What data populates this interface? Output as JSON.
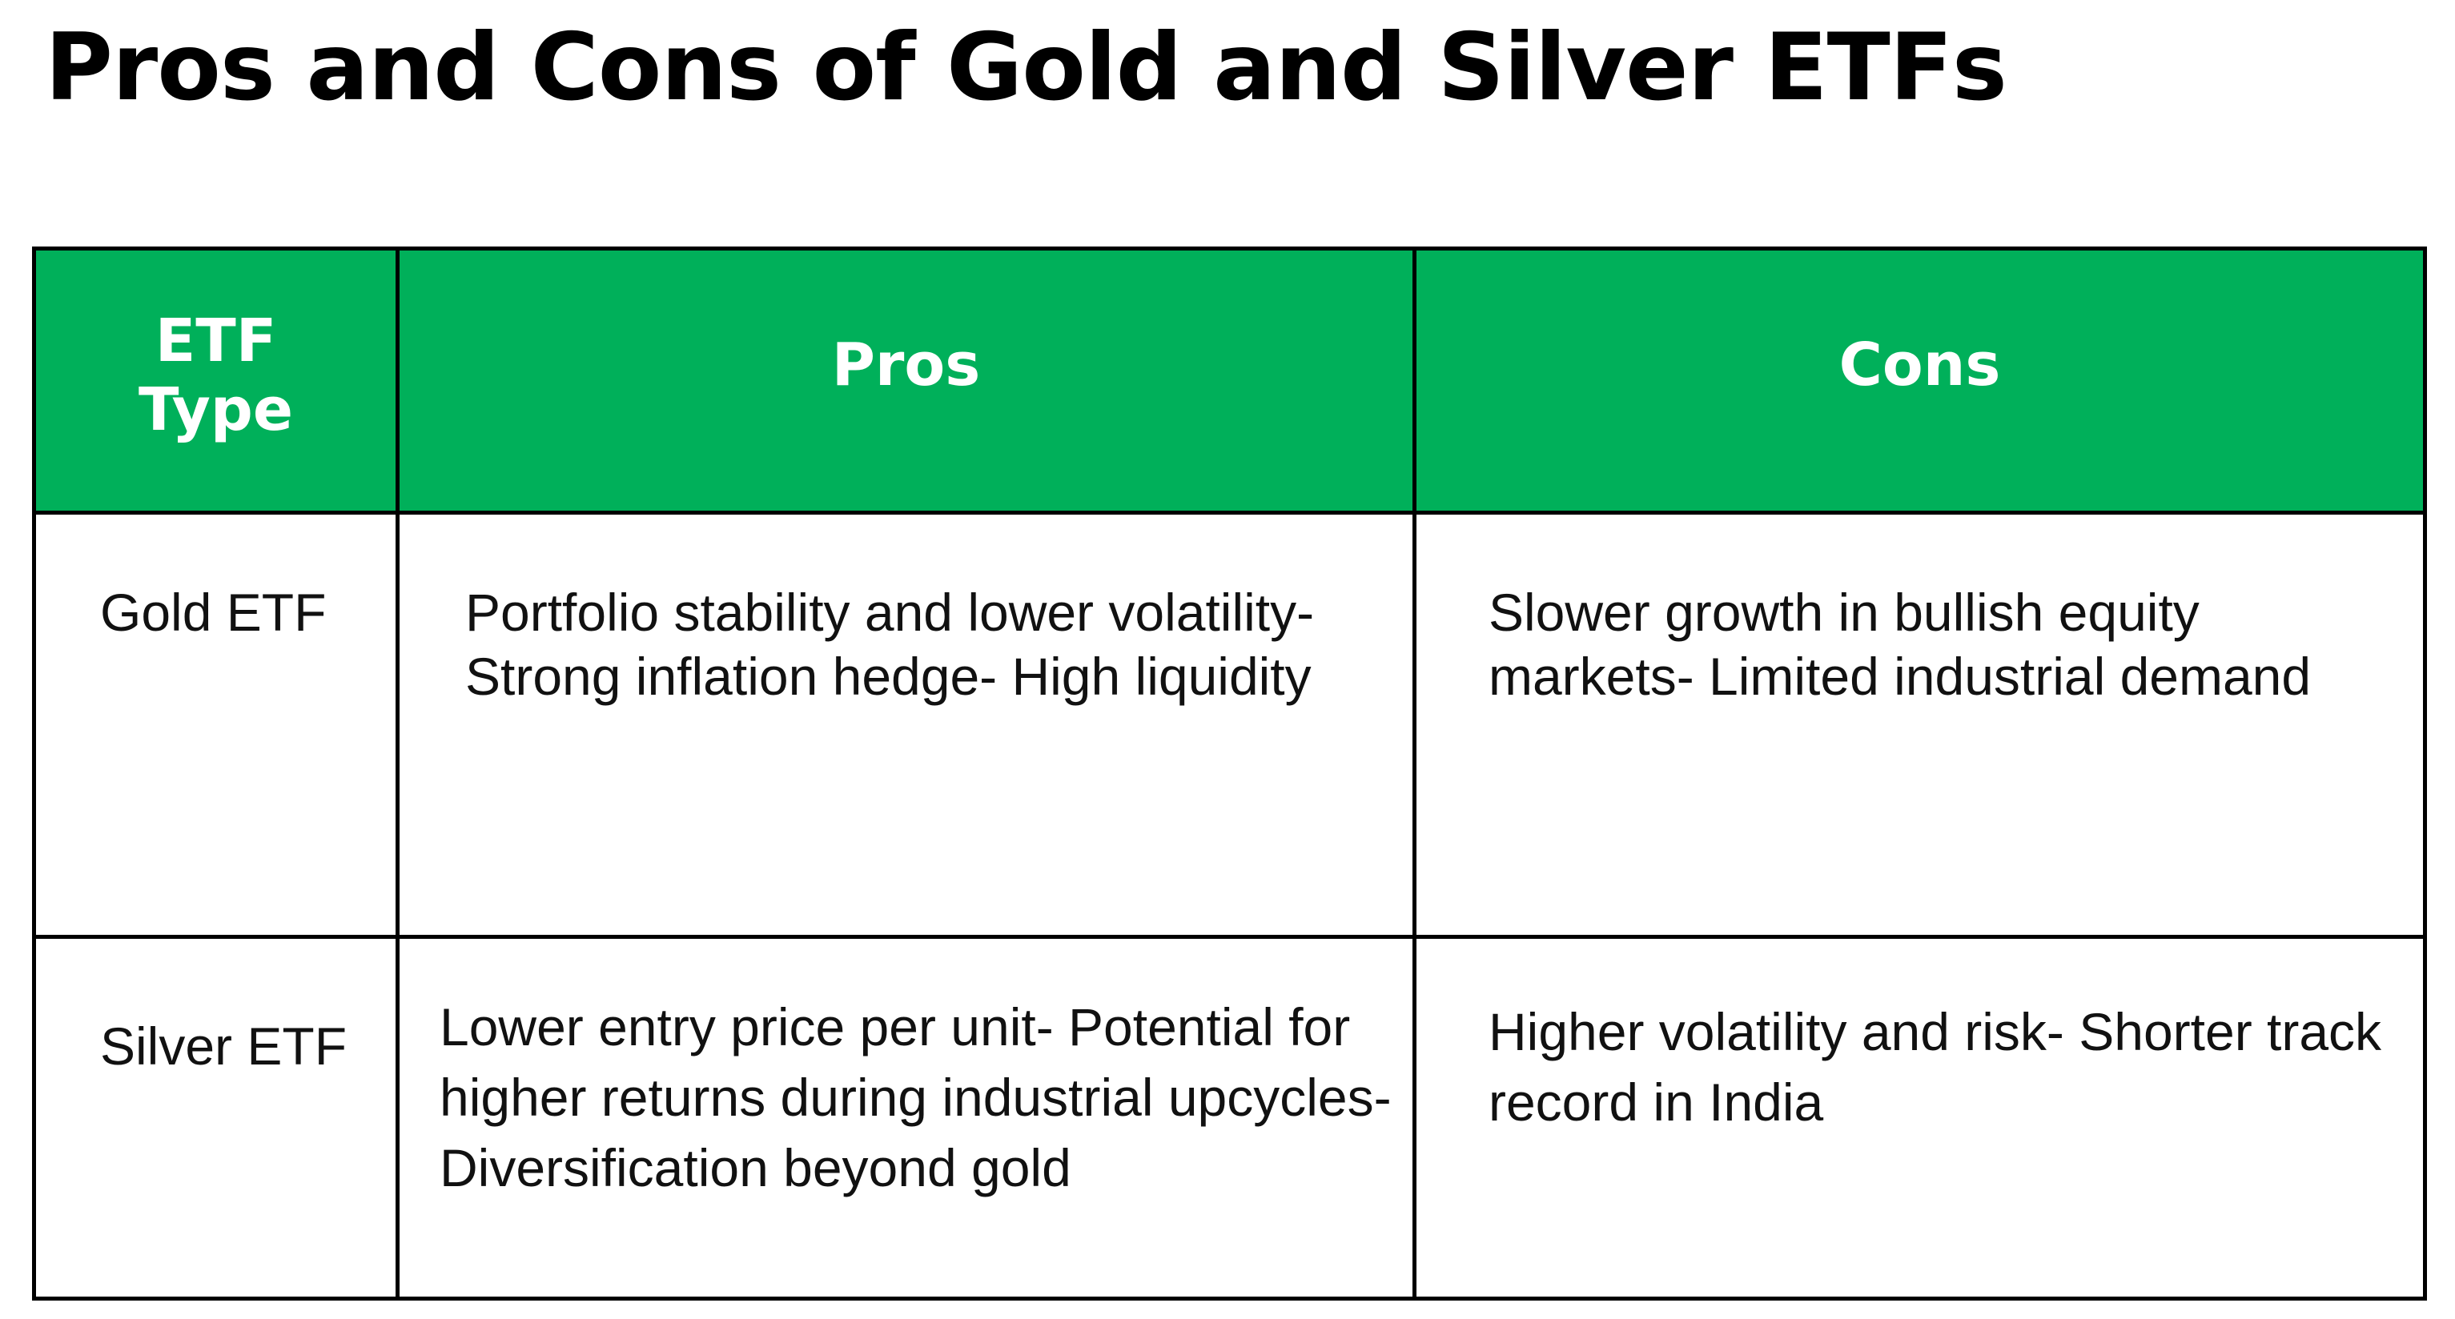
{
  "title": "Pros and Cons of Gold and Silver ETFs",
  "table": {
    "headers": [
      "ETF Type",
      "Pros",
      "Cons"
    ],
    "rows": [
      {
        "type": "Gold ETF",
        "pros": "Portfolio stability and lower volatility-Strong inflation hedge- High liquidity",
        "cons": "Slower growth in bullish equity markets- Limited industrial demand"
      },
      {
        "type": "Silver ETF",
        "pros": "Lower entry price per unit- Potential for higher returns during industrial upcycles- Diversification beyond gold",
        "cons": "Higher volatility and risk- Shorter track record in India"
      }
    ]
  },
  "colors": {
    "header_background": "#00b05a",
    "header_text": "#ffffff",
    "border": "#000000"
  }
}
